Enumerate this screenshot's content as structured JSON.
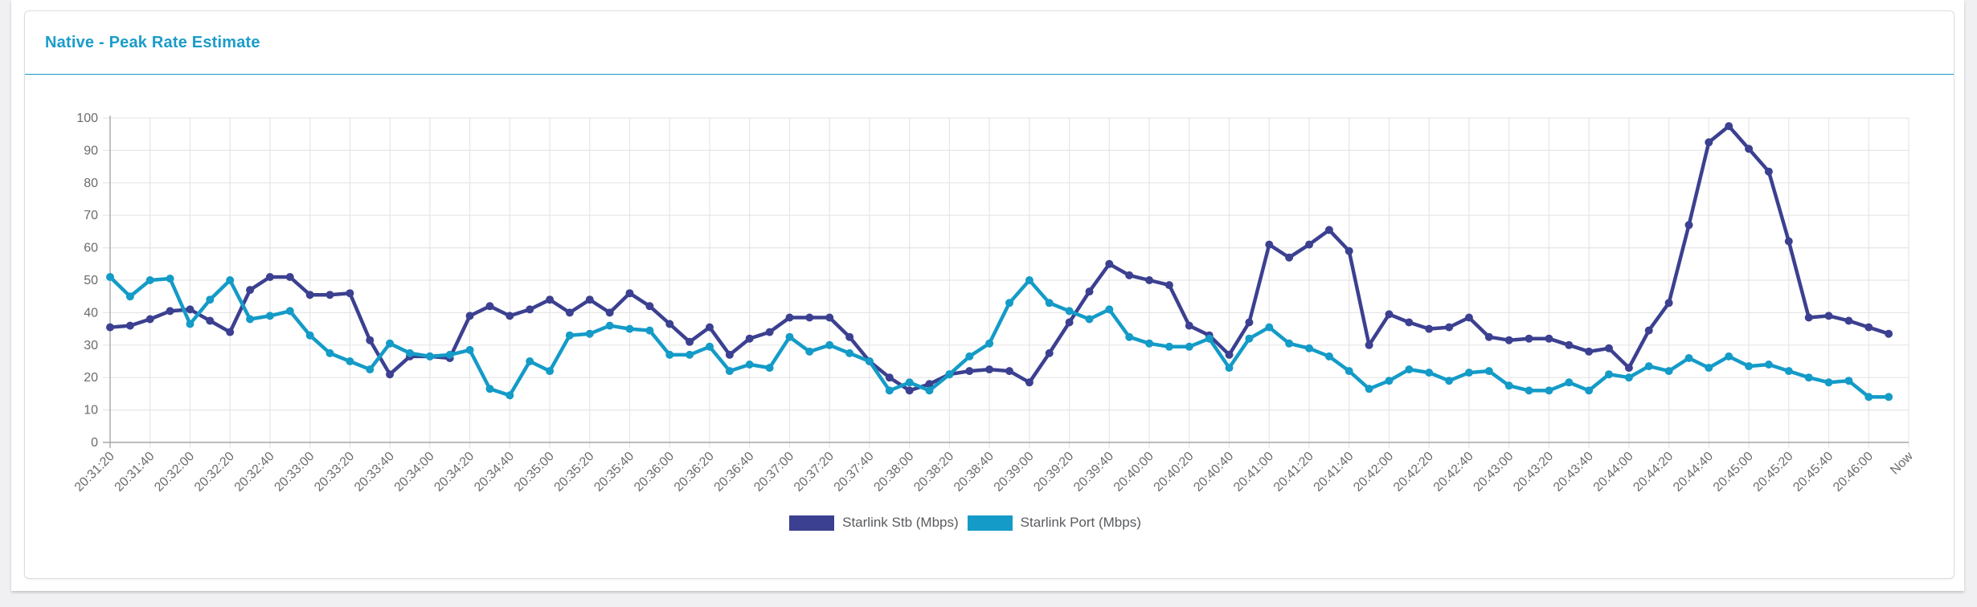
{
  "card": {
    "title": "Native - Peak Rate Estimate"
  },
  "accent_color": "#1b9cc9",
  "chart_data": {
    "type": "line",
    "title": "Native - Peak Rate Estimate",
    "ylim": [
      0,
      100
    ],
    "y_ticks": [
      0,
      10,
      20,
      30,
      40,
      50,
      60,
      70,
      80,
      90,
      100
    ],
    "x_tick_labels": [
      "20:31:20",
      "20:31:40",
      "20:32:00",
      "20:32:20",
      "20:32:40",
      "20:33:00",
      "20:33:20",
      "20:33:40",
      "20:34:00",
      "20:34:20",
      "20:34:40",
      "20:35:00",
      "20:35:20",
      "20:35:40",
      "20:36:00",
      "20:36:20",
      "20:36:40",
      "20:37:00",
      "20:37:20",
      "20:37:40",
      "20:38:00",
      "20:38:20",
      "20:38:40",
      "20:39:00",
      "20:39:20",
      "20:39:40",
      "20:40:00",
      "20:40:20",
      "20:40:40",
      "20:41:00",
      "20:41:20",
      "20:41:40",
      "20:42:00",
      "20:42:20",
      "20:42:40",
      "20:43:00",
      "20:43:20",
      "20:43:40",
      "20:44:00",
      "20:44:20",
      "20:44:40",
      "20:45:00",
      "20:45:20",
      "20:45:40",
      "20:46:00",
      "Now"
    ],
    "sample_interval_seconds": 10,
    "grid": true,
    "legend_position": "bottom",
    "grid_color": "#e6e6e6",
    "axis_color": "#a8a8a8",
    "tick_text_color": "#6b6b6b",
    "series": [
      {
        "name": "Starlink Stb (Mbps)",
        "color": "#3b4090",
        "values": [
          35.5,
          36,
          38,
          40.5,
          41,
          37.5,
          34,
          47,
          51,
          51,
          45.5,
          45.5,
          46,
          31.5,
          21,
          26.5,
          26.5,
          26,
          39,
          42,
          39,
          41,
          44,
          40,
          44,
          40,
          46,
          42,
          36.5,
          31,
          35.5,
          27,
          32,
          34,
          38.5,
          38.5,
          38.5,
          32.5,
          25,
          20,
          16,
          18,
          21,
          22,
          22.5,
          22,
          18.5,
          27.5,
          37,
          46.5,
          55,
          51.5,
          50,
          48.5,
          36,
          33,
          27,
          37,
          61,
          57,
          61,
          65.5,
          59,
          30,
          39.5,
          37,
          35,
          35.5,
          38.5,
          32.5,
          31.5,
          32,
          32,
          30,
          28,
          29,
          23,
          34.5,
          43,
          67,
          92.5,
          97.5,
          90.5,
          83.5,
          62,
          38.5,
          39,
          37.5,
          35.5,
          33.5
        ]
      },
      {
        "name": "Starlink Port (Mbps)",
        "color": "#149bc7",
        "values": [
          51,
          45,
          50,
          50.5,
          36.5,
          44,
          50,
          38,
          39,
          40.5,
          33,
          27.5,
          25,
          22.5,
          30.5,
          27.5,
          26.5,
          27,
          28.5,
          16.5,
          14.5,
          25,
          22,
          33,
          33.5,
          36,
          35,
          34.5,
          27,
          27,
          29.5,
          22,
          24,
          23,
          32.5,
          28,
          30,
          27.5,
          25,
          16,
          18.5,
          16,
          21,
          26.5,
          30.5,
          43,
          50,
          43,
          40.5,
          38,
          41,
          32.5,
          30.5,
          29.5,
          29.5,
          32,
          23,
          32,
          35.5,
          30.5,
          29,
          26.5,
          22,
          16.5,
          19,
          22.5,
          21.5,
          19,
          21.5,
          22,
          17.5,
          16,
          16,
          18.5,
          16,
          21,
          20,
          23.5,
          22,
          26,
          23,
          26.5,
          23.5,
          24,
          22,
          20,
          18.5,
          19,
          14,
          14
        ]
      }
    ]
  }
}
